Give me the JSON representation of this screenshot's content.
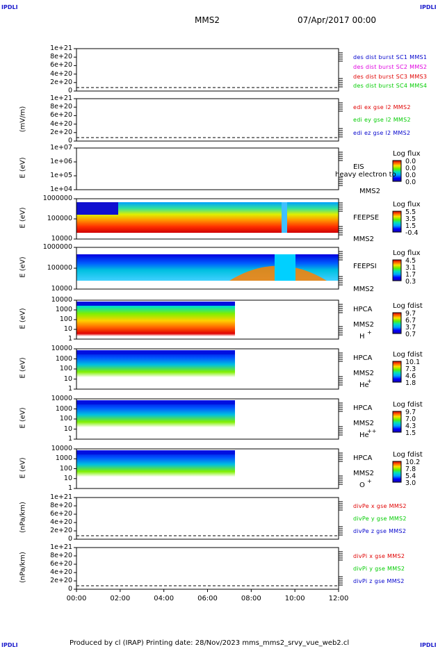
{
  "corners": {
    "tl": "IPDLI",
    "tr": "IPDLI",
    "bl": "IPDLI",
    "br": "IPDLI"
  },
  "header": {
    "spacecraft": "MMS2",
    "date": "07/Apr/2017 00:00"
  },
  "footer": {
    "text": "Produced by cl (IRAP)   Printing date: 28/Nov/2023   mms_mms2_srvy_vue_web2.cl"
  },
  "xaxis": {
    "ticks": [
      "00:00",
      "02:00",
      "04:00",
      "06:00",
      "08:00",
      "10:00",
      "12:00"
    ]
  },
  "colors": {
    "red": "#e00000",
    "magenta": "#e000e0",
    "green": "#00cc00",
    "blue": "#0000cc",
    "teal": "#00a0a0",
    "dash": "#000000"
  },
  "panels": [
    {
      "id": "p1",
      "ylabel": "",
      "ticks": [
        "1e+21",
        "8e+20",
        "6e+20",
        "4e+20",
        "2e+20",
        "0"
      ],
      "legend": [
        {
          "text": "des dist burst SC1 MMS1",
          "color": "#0000cc"
        },
        {
          "text": "des dist burst SC2 MMS2",
          "color": "#e000e0"
        },
        {
          "text": "des dist burst SC3 MMS3",
          "color": "#e00000"
        },
        {
          "text": "des dist burst SC4 MMS4",
          "color": "#00cc00"
        }
      ]
    },
    {
      "id": "p2",
      "ylabel": "(mV/m)",
      "ticks": [
        "1e+21",
        "8e+20",
        "6e+20",
        "4e+20",
        "2e+20",
        "0"
      ],
      "legend": [
        {
          "text": "edi ex gse l2 MMS2",
          "color": "#e00000"
        },
        {
          "text": "edi ey gse l2 MMS2",
          "color": "#00cc00"
        },
        {
          "text": "edi ez gse l2 MMS2",
          "color": "#0000cc"
        }
      ]
    },
    {
      "id": "p3",
      "ylabel": "E (eV)",
      "ticks": [
        "1e+07",
        "1e+06",
        "1e+05",
        "1e+04"
      ],
      "rlabel": [
        "EIS",
        "heavy electron to",
        "MMS2"
      ],
      "cb": {
        "title": "Log flux",
        "values": [
          "0.0",
          "0.0",
          "0.0",
          "0.0"
        ]
      }
    },
    {
      "id": "p4",
      "ylabel": "E (eV)",
      "ticks": [
        "1000000",
        "100000",
        "10000"
      ],
      "rlabel": [
        "FEEPSE",
        "MMS2"
      ],
      "cb": {
        "title": "Log flux",
        "values": [
          "5.5",
          "3.5",
          "1.5",
          "-0.4"
        ]
      }
    },
    {
      "id": "p5",
      "ylabel": "E (eV)",
      "ticks": [
        "1000000",
        "100000",
        "10000"
      ],
      "rlabel": [
        "FEEPSI",
        "MMS2"
      ],
      "cb": {
        "title": "Log flux",
        "values": [
          "4.5",
          "3.1",
          "1.7",
          "0.3"
        ]
      }
    },
    {
      "id": "p6",
      "ylabel": "E (eV)",
      "ticks": [
        "10000",
        "1000",
        "100",
        "10",
        "1"
      ],
      "rlabel": [
        "HPCA",
        "MMS2",
        "H"
      ],
      "sup": "+",
      "cb": {
        "title": "Log fdist",
        "values": [
          "9.7",
          "6.7",
          "3.7",
          "0.7"
        ]
      }
    },
    {
      "id": "p7",
      "ylabel": "E (eV)",
      "ticks": [
        "10000",
        "1000",
        "100",
        "10",
        "1"
      ],
      "rlabel": [
        "HPCA",
        "MMS2",
        "He"
      ],
      "sup": "+",
      "cb": {
        "title": "Log fdist",
        "values": [
          "10.1",
          "7.3",
          "4.6",
          "1.8"
        ]
      }
    },
    {
      "id": "p8",
      "ylabel": "E (eV)",
      "ticks": [
        "10000",
        "1000",
        "100",
        "10",
        "1"
      ],
      "rlabel": [
        "HPCA",
        "MMS2",
        "He"
      ],
      "sup": "++",
      "cb": {
        "title": "Log fdist",
        "values": [
          "9.7",
          "7.0",
          "4.3",
          "1.5"
        ]
      }
    },
    {
      "id": "p9",
      "ylabel": "E (eV)",
      "ticks": [
        "10000",
        "1000",
        "100",
        "10",
        "1"
      ],
      "rlabel": [
        "HPCA",
        "MMS2",
        "O"
      ],
      "sup": "+",
      "cb": {
        "title": "Log fdist",
        "values": [
          "10.2",
          "7.8",
          "5.4",
          "3.0"
        ]
      }
    },
    {
      "id": "p10",
      "ylabel": "(nPa/km)",
      "ticks": [
        "1e+21",
        "8e+20",
        "6e+20",
        "4e+20",
        "2e+20",
        "0"
      ],
      "legend": [
        {
          "text": "divPe x gse MMS2",
          "color": "#e00000"
        },
        {
          "text": "divPe y gse MMS2",
          "color": "#00cc00"
        },
        {
          "text": "divPe z gse MMS2",
          "color": "#0000cc"
        }
      ]
    },
    {
      "id": "p11",
      "ylabel": "(nPa/km)",
      "ticks": [
        "1e+21",
        "8e+20",
        "6e+20",
        "4e+20",
        "2e+20",
        "0"
      ],
      "legend": [
        {
          "text": "divPi x gse MMS2",
          "color": "#e00000"
        },
        {
          "text": "divPi y gse MMS2",
          "color": "#00cc00"
        },
        {
          "text": "divPi z gse MMS2",
          "color": "#0000cc"
        }
      ]
    }
  ],
  "chart_data": {
    "type": "heatmap",
    "x_range": [
      "00:00",
      "12:00"
    ],
    "series": [
      {
        "name": "des dist burst",
        "kind": "line",
        "values": []
      },
      {
        "name": "edi e gse l2",
        "kind": "line",
        "values": []
      },
      {
        "name": "EIS",
        "kind": "spectrogram",
        "ylim": [
          10000,
          10000000
        ],
        "scale": "log"
      },
      {
        "name": "FEEPSE",
        "kind": "spectrogram",
        "ylim": [
          10000,
          1000000
        ],
        "scale": "log",
        "data_coverage": [
          "00:00",
          "12:00"
        ]
      },
      {
        "name": "FEEPSI",
        "kind": "spectrogram",
        "ylim": [
          10000,
          1000000
        ],
        "scale": "log",
        "data_coverage": [
          "00:00",
          "12:00"
        ]
      },
      {
        "name": "HPCA H+",
        "kind": "spectrogram",
        "ylim": [
          1,
          10000
        ],
        "scale": "log",
        "data_coverage": [
          "00:00",
          "07:10"
        ]
      },
      {
        "name": "HPCA He+",
        "kind": "spectrogram",
        "ylim": [
          1,
          10000
        ],
        "scale": "log",
        "data_coverage": [
          "00:00",
          "07:10"
        ]
      },
      {
        "name": "HPCA He++",
        "kind": "spectrogram",
        "ylim": [
          1,
          10000
        ],
        "scale": "log",
        "data_coverage": [
          "00:00",
          "07:10"
        ]
      },
      {
        "name": "HPCA O+",
        "kind": "spectrogram",
        "ylim": [
          1,
          10000
        ],
        "scale": "log",
        "data_coverage": [
          "00:00",
          "07:10"
        ]
      },
      {
        "name": "divPe gse",
        "kind": "line",
        "values": []
      },
      {
        "name": "divPi gse",
        "kind": "line",
        "values": []
      }
    ]
  }
}
